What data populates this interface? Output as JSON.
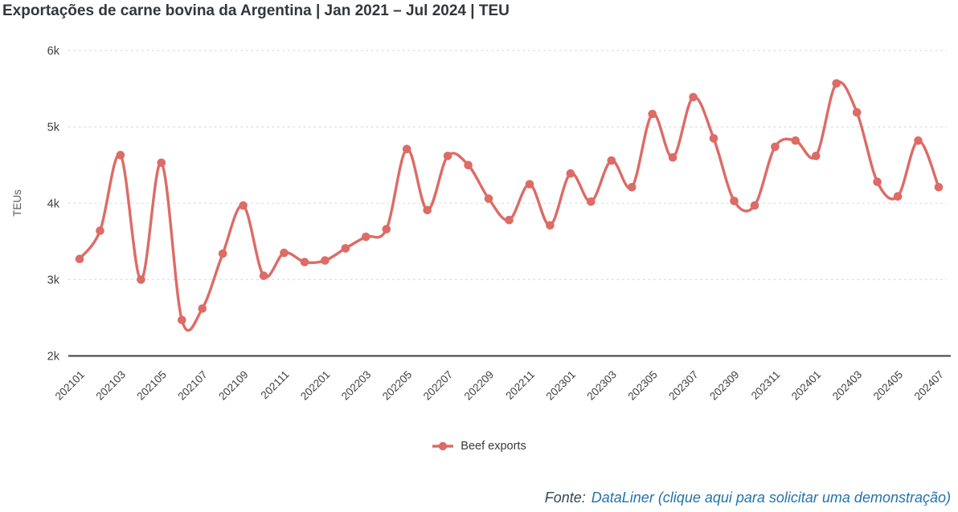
{
  "header": {
    "title": "Exportações de carne bovina da Argentina | Jan 2021 – Jul 2024 | TEU"
  },
  "chart_data": {
    "type": "line",
    "title": "Exportações de carne bovina da Argentina | Jan 2021 – Jul 2024 | TEU",
    "xlabel": "",
    "ylabel": "TEUs",
    "ylim": [
      2000,
      6000
    ],
    "grid": "horizontal-dashed",
    "legend_position": "bottom-center",
    "smooth": true,
    "x_tick_every": 2,
    "x": [
      "202101",
      "202102",
      "202103",
      "202104",
      "202105",
      "202106",
      "202107",
      "202108",
      "202109",
      "202110",
      "202111",
      "202112",
      "202201",
      "202202",
      "202203",
      "202204",
      "202205",
      "202206",
      "202207",
      "202208",
      "202209",
      "202210",
      "202211",
      "202212",
      "202301",
      "202302",
      "202303",
      "202304",
      "202305",
      "202306",
      "202307",
      "202308",
      "202309",
      "202310",
      "202311",
      "202312",
      "202401",
      "202402",
      "202403",
      "202404",
      "202405",
      "202406",
      "202407"
    ],
    "y_ticks": [
      {
        "label": "2k",
        "value": 2000
      },
      {
        "label": "3k",
        "value": 3000
      },
      {
        "label": "4k",
        "value": 4000
      },
      {
        "label": "5k",
        "value": 5000
      },
      {
        "label": "6k",
        "value": 6000
      }
    ],
    "series": [
      {
        "name": "Beef exports",
        "color": "#dd6b66",
        "values": [
          3270,
          3640,
          4630,
          3000,
          4530,
          2470,
          2620,
          3340,
          3970,
          3050,
          3350,
          3230,
          3250,
          3410,
          3560,
          3660,
          4710,
          3910,
          4620,
          4500,
          4060,
          3780,
          4250,
          3710,
          4390,
          4020,
          4560,
          4210,
          5170,
          4600,
          5390,
          4850,
          4030,
          3970,
          4740,
          4820,
          4620,
          5570,
          5190,
          4280,
          4090,
          4820,
          4210
        ]
      }
    ]
  },
  "legend": {
    "items": [
      {
        "label": "Beef exports",
        "color": "#dd6b66"
      }
    ]
  },
  "footer": {
    "prefix": "Fonte:",
    "link_text": "DataLiner (clique aqui para solicitar uma demonstração)"
  },
  "colors": {
    "line": "#dd6b66",
    "grid": "#d9d9d9",
    "axis_line": "#3f3f3f",
    "axis_text": "#404040",
    "axis_name": "#5a5a5a",
    "title": "#33363c",
    "footer_text": "#37474f",
    "link": "#2273ad",
    "legend_text": "#3a3a3a"
  }
}
